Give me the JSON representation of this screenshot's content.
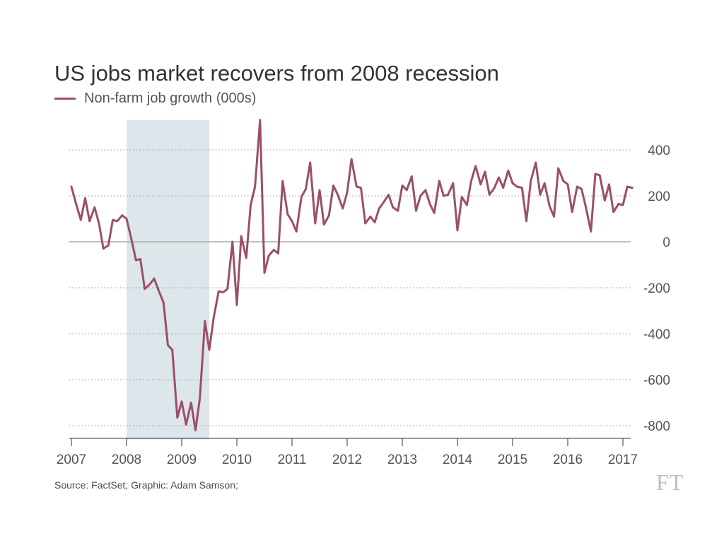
{
  "chart_data": {
    "type": "line",
    "title": "US jobs market recovers from 2008 recession",
    "series": [
      {
        "name": "Non-farm job growth (000s)",
        "color": "#9b4f68",
        "points": [
          [
            2007.0,
            240
          ],
          [
            2007.08,
            170
          ],
          [
            2007.17,
            95
          ],
          [
            2007.25,
            190
          ],
          [
            2007.33,
            90
          ],
          [
            2007.42,
            150
          ],
          [
            2007.5,
            80
          ],
          [
            2007.58,
            -30
          ],
          [
            2007.67,
            -15
          ],
          [
            2007.75,
            95
          ],
          [
            2007.83,
            90
          ],
          [
            2007.92,
            115
          ],
          [
            2008.0,
            100
          ],
          [
            2008.08,
            20
          ],
          [
            2008.17,
            -80
          ],
          [
            2008.25,
            -75
          ],
          [
            2008.33,
            -205
          ],
          [
            2008.42,
            -185
          ],
          [
            2008.5,
            -160
          ],
          [
            2008.58,
            -210
          ],
          [
            2008.67,
            -265
          ],
          [
            2008.75,
            -450
          ],
          [
            2008.83,
            -470
          ],
          [
            2008.92,
            -765
          ],
          [
            2009.0,
            -695
          ],
          [
            2009.08,
            -795
          ],
          [
            2009.17,
            -700
          ],
          [
            2009.25,
            -820
          ],
          [
            2009.33,
            -680
          ],
          [
            2009.42,
            -345
          ],
          [
            2009.5,
            -470
          ],
          [
            2009.58,
            -330
          ],
          [
            2009.67,
            -215
          ],
          [
            2009.75,
            -220
          ],
          [
            2009.83,
            -205
          ],
          [
            2009.92,
            0
          ],
          [
            2010.0,
            -275
          ],
          [
            2010.08,
            25
          ],
          [
            2010.17,
            -70
          ],
          [
            2010.25,
            160
          ],
          [
            2010.33,
            240
          ],
          [
            2010.42,
            530
          ],
          [
            2010.5,
            -135
          ],
          [
            2010.58,
            -60
          ],
          [
            2010.67,
            -35
          ],
          [
            2010.75,
            -50
          ],
          [
            2010.83,
            265
          ],
          [
            2010.92,
            120
          ],
          [
            2011.0,
            90
          ],
          [
            2011.08,
            45
          ],
          [
            2011.17,
            195
          ],
          [
            2011.25,
            230
          ],
          [
            2011.33,
            345
          ],
          [
            2011.42,
            80
          ],
          [
            2011.5,
            225
          ],
          [
            2011.58,
            75
          ],
          [
            2011.67,
            115
          ],
          [
            2011.75,
            245
          ],
          [
            2011.83,
            205
          ],
          [
            2011.92,
            145
          ],
          [
            2012.0,
            215
          ],
          [
            2012.08,
            360
          ],
          [
            2012.17,
            240
          ],
          [
            2012.25,
            235
          ],
          [
            2012.33,
            80
          ],
          [
            2012.42,
            110
          ],
          [
            2012.5,
            85
          ],
          [
            2012.58,
            145
          ],
          [
            2012.67,
            175
          ],
          [
            2012.75,
            205
          ],
          [
            2012.83,
            150
          ],
          [
            2012.92,
            135
          ],
          [
            2013.0,
            245
          ],
          [
            2013.08,
            225
          ],
          [
            2013.17,
            285
          ],
          [
            2013.25,
            135
          ],
          [
            2013.33,
            200
          ],
          [
            2013.42,
            225
          ],
          [
            2013.5,
            165
          ],
          [
            2013.58,
            125
          ],
          [
            2013.67,
            265
          ],
          [
            2013.75,
            200
          ],
          [
            2013.83,
            205
          ],
          [
            2013.92,
            255
          ],
          [
            2014.0,
            50
          ],
          [
            2014.08,
            195
          ],
          [
            2014.17,
            160
          ],
          [
            2014.25,
            265
          ],
          [
            2014.33,
            330
          ],
          [
            2014.42,
            250
          ],
          [
            2014.5,
            305
          ],
          [
            2014.58,
            205
          ],
          [
            2014.67,
            235
          ],
          [
            2014.75,
            280
          ],
          [
            2014.83,
            235
          ],
          [
            2014.92,
            310
          ],
          [
            2015.0,
            255
          ],
          [
            2015.08,
            240
          ],
          [
            2015.17,
            235
          ],
          [
            2015.25,
            90
          ],
          [
            2015.33,
            265
          ],
          [
            2015.42,
            345
          ],
          [
            2015.5,
            205
          ],
          [
            2015.58,
            255
          ],
          [
            2015.67,
            155
          ],
          [
            2015.75,
            110
          ],
          [
            2015.83,
            320
          ],
          [
            2015.92,
            265
          ],
          [
            2016.0,
            250
          ],
          [
            2016.08,
            130
          ],
          [
            2016.17,
            240
          ],
          [
            2016.25,
            230
          ],
          [
            2016.33,
            150
          ],
          [
            2016.42,
            45
          ],
          [
            2016.5,
            295
          ],
          [
            2016.58,
            290
          ],
          [
            2016.67,
            180
          ],
          [
            2016.75,
            250
          ],
          [
            2016.83,
            130
          ],
          [
            2016.92,
            165
          ],
          [
            2017.0,
            160
          ],
          [
            2017.08,
            240
          ],
          [
            2017.17,
            235
          ]
        ]
      }
    ],
    "x_ticks": [
      "2007",
      "2008",
      "2009",
      "2010",
      "2011",
      "2012",
      "2013",
      "2014",
      "2015",
      "2016",
      "2017"
    ],
    "y_ticks": [
      "400",
      "200",
      "0",
      "-200",
      "-400",
      "-600",
      "-800"
    ],
    "xlim": [
      2007,
      2017.25
    ],
    "ylim": [
      -860,
      530
    ],
    "y_tick_values": [
      400,
      200,
      0,
      -200,
      -400,
      -600,
      -800
    ],
    "x_tick_values": [
      2007,
      2008,
      2009,
      2010,
      2011,
      2012,
      2013,
      2014,
      2015,
      2016,
      2017
    ],
    "recession_shading": {
      "start": 2008.0,
      "end": 2009.5,
      "color": "#dde6ea"
    },
    "grid": "dotted horizontal",
    "legend": "top-left"
  },
  "source": "Source: FactSet; Graphic: Adam Samson;",
  "logo": "FT"
}
